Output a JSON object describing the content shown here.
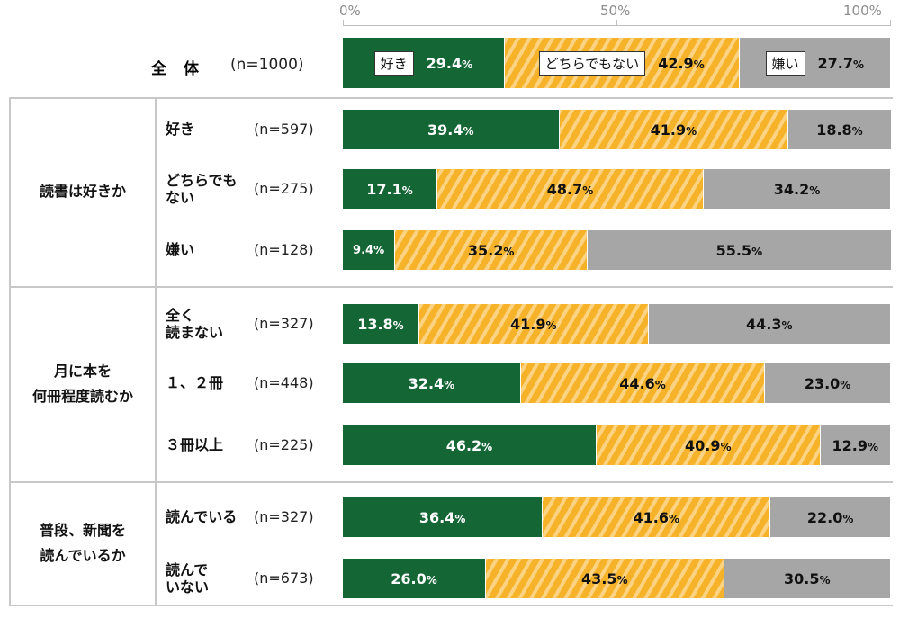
{
  "chart_data": {
    "type": "bar",
    "stacked": true,
    "orientation": "horizontal",
    "percent_stacked": true,
    "x_ticks": [
      "0%",
      "50%",
      "100%"
    ],
    "xlim": [
      0,
      100
    ],
    "series_names": [
      "好き",
      "どちらでもない",
      "嫌い"
    ],
    "colors": [
      "#146635",
      "#f6b329",
      "#a6a6a6"
    ],
    "legend_placement": "inside-top-bar",
    "overall": {
      "label": "全　体",
      "n": "(n=1000)",
      "values": [
        29.4,
        42.9,
        27.7
      ]
    },
    "groups": [
      {
        "label": "読書は好きか",
        "rows": [
          {
            "label": "好き",
            "n": "(n=597)",
            "values": [
              39.4,
              41.9,
              18.8
            ]
          },
          {
            "label": "どちらでも\nない",
            "n": "(n=275)",
            "values": [
              17.1,
              48.7,
              34.2
            ]
          },
          {
            "label": "嫌い",
            "n": "(n=128)",
            "values": [
              9.4,
              35.2,
              55.5
            ]
          }
        ]
      },
      {
        "label": "月に本を\n何冊程度読むか",
        "rows": [
          {
            "label": "全く\n読まない",
            "n": "(n=327)",
            "values": [
              13.8,
              41.9,
              44.3
            ]
          },
          {
            "label": "１、２冊",
            "n": "(n=448)",
            "values": [
              32.4,
              44.6,
              23.0
            ]
          },
          {
            "label": "３冊以上",
            "n": "(n=225)",
            "values": [
              46.2,
              40.9,
              12.9
            ]
          }
        ]
      },
      {
        "label": "普段、新聞を\n読んでいるか",
        "rows": [
          {
            "label": "読んでいる",
            "n": "(n=327)",
            "values": [
              36.4,
              41.6,
              22.0
            ]
          },
          {
            "label": "読んで\nいない",
            "n": "(n=673)",
            "values": [
              26.0,
              43.5,
              30.5
            ]
          }
        ]
      }
    ]
  }
}
